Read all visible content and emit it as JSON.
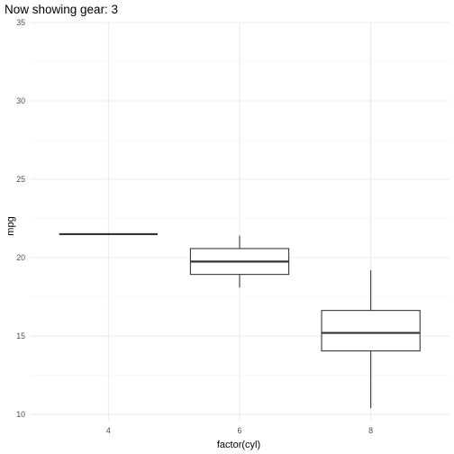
{
  "chart_data": {
    "type": "boxplot",
    "title": "Now showing gear: 3",
    "xlabel": "factor(cyl)",
    "ylabel": "mpg",
    "categories": [
      "4",
      "6",
      "8"
    ],
    "y_ticks": [
      10,
      15,
      20,
      25,
      30,
      35
    ],
    "ylim": [
      9.6,
      35
    ],
    "grid": true,
    "boxes": [
      {
        "category": "4",
        "whisker_low": 21.5,
        "q1": 21.5,
        "median": 21.5,
        "q3": 21.5,
        "whisker_high": 21.5
      },
      {
        "category": "6",
        "whisker_low": 18.1,
        "q1": 18.93,
        "median": 19.75,
        "q3": 20.58,
        "whisker_high": 21.4
      },
      {
        "category": "8",
        "whisker_low": 10.4,
        "q1": 14.05,
        "median": 15.2,
        "q3": 16.63,
        "whisker_high": 19.2
      }
    ]
  }
}
